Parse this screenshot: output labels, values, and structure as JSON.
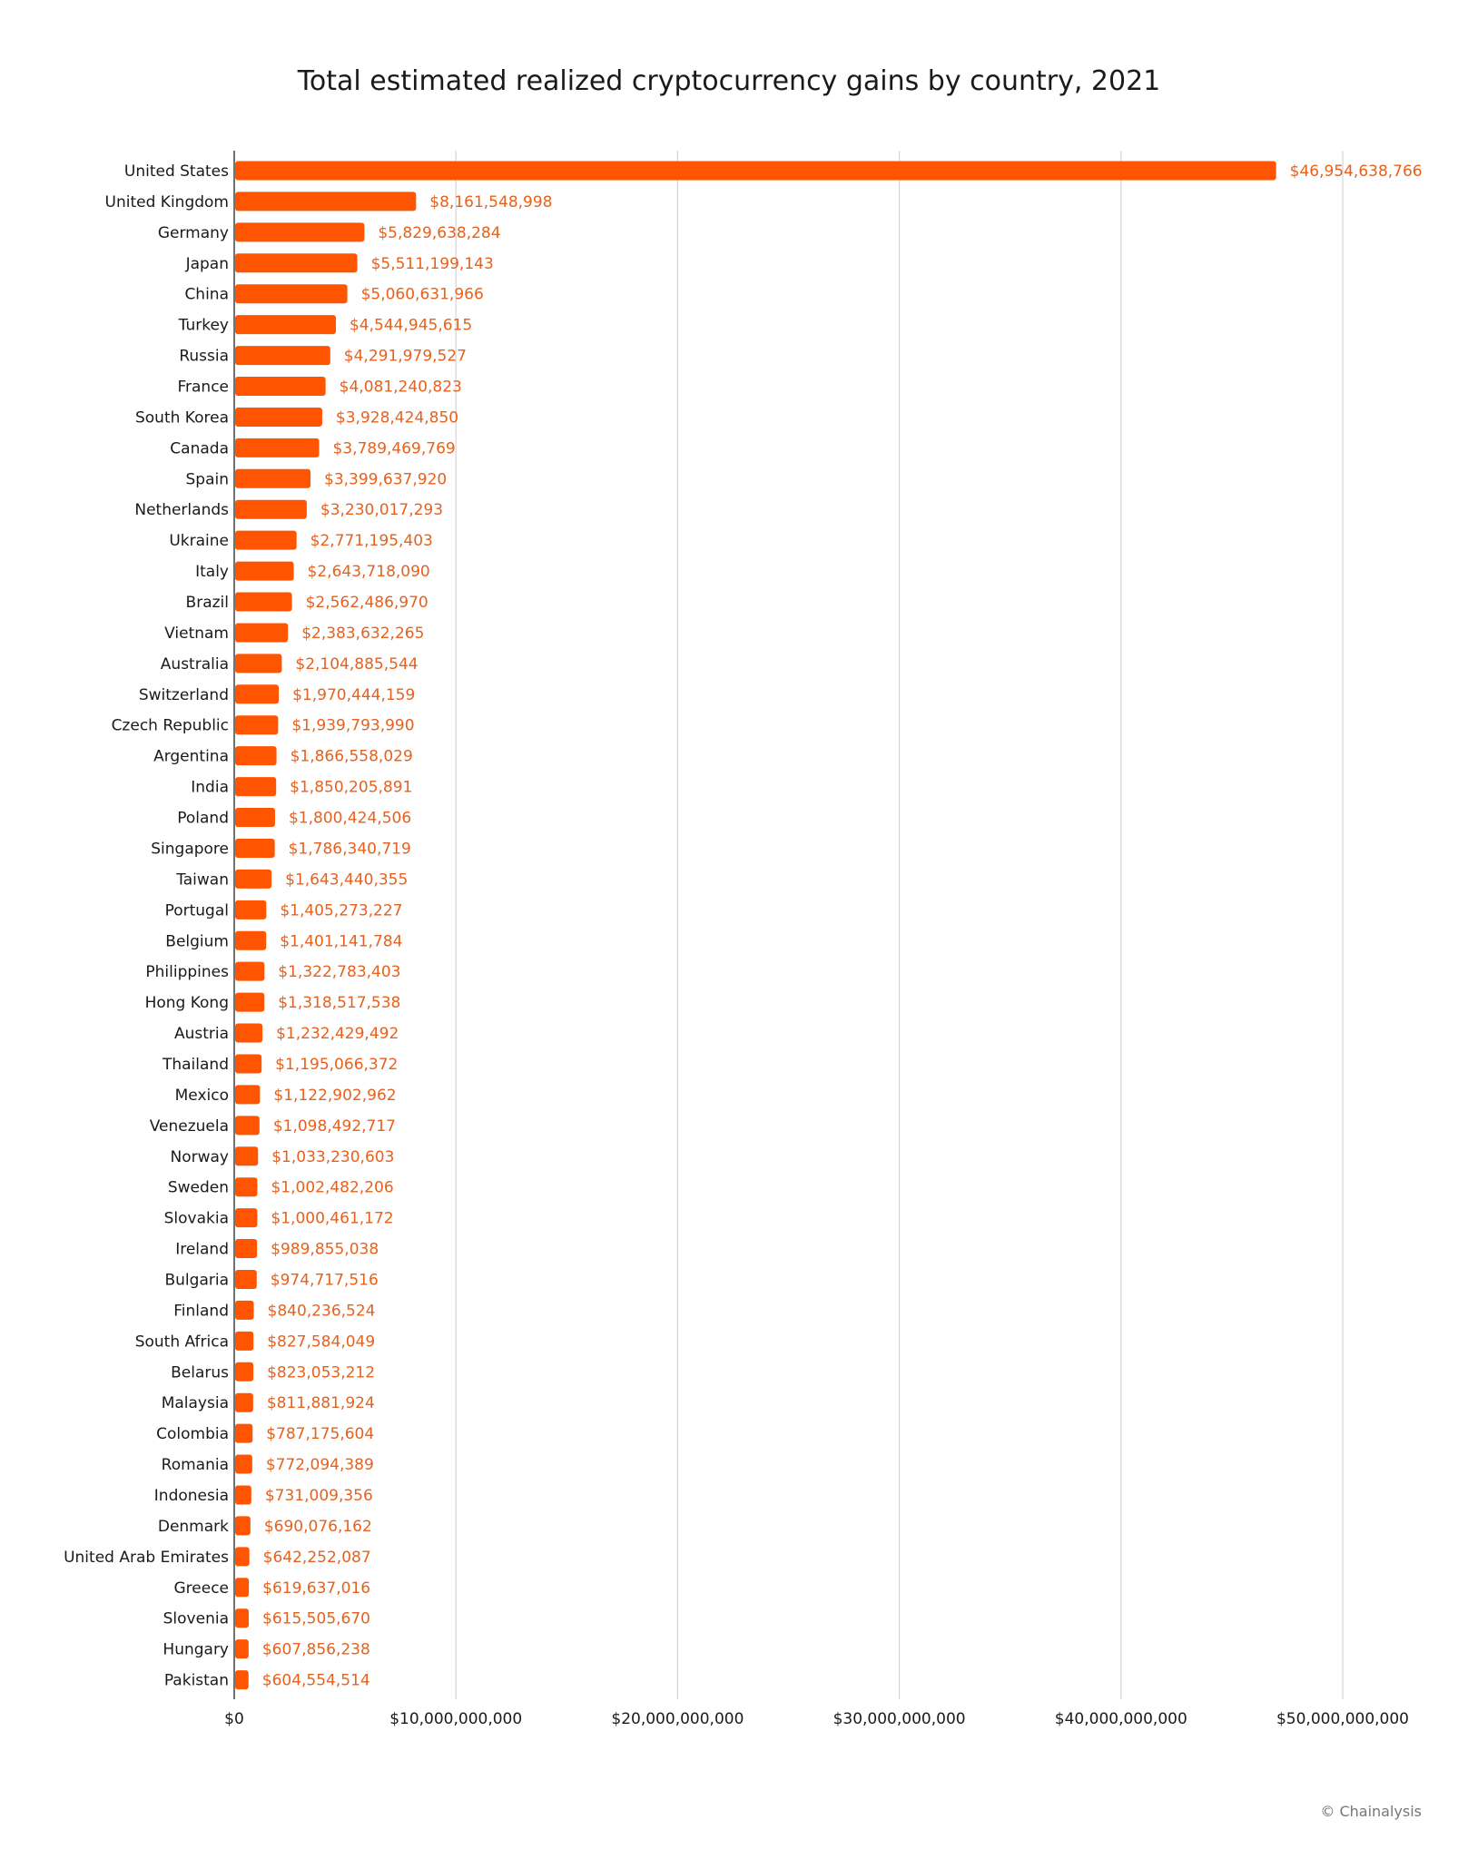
{
  "chart_data": {
    "type": "bar",
    "orientation": "horizontal",
    "title": "Total estimated realized cryptocurrency gains by country, 2021",
    "xlabel": "",
    "ylabel": "",
    "xlim": [
      0,
      50000000000
    ],
    "x_ticks": [
      0,
      10000000000,
      20000000000,
      30000000000,
      40000000000,
      50000000000
    ],
    "x_tick_labels": [
      "$0",
      "$10,000,000,000",
      "$20,000,000,000",
      "$30,000,000,000",
      "$40,000,000,000",
      "$50,000,000,000"
    ],
    "grid": "vertical",
    "legend": "none",
    "bar_color": "#FF5500",
    "label_color": "#E8611C",
    "categories": [
      "United States",
      "United Kingdom",
      "Germany",
      "Japan",
      "China",
      "Turkey",
      "Russia",
      "France",
      "South Korea",
      "Canada",
      "Spain",
      "Netherlands",
      "Ukraine",
      "Italy",
      "Brazil",
      "Vietnam",
      "Australia",
      "Switzerland",
      "Czech Republic",
      "Argentina",
      "India",
      "Poland",
      "Singapore",
      "Taiwan",
      "Portugal",
      "Belgium",
      "Philippines",
      "Hong Kong",
      "Austria",
      "Thailand",
      "Mexico",
      "Venezuela",
      "Norway",
      "Sweden",
      "Slovakia",
      "Ireland",
      "Bulgaria",
      "Finland",
      "South Africa",
      "Belarus",
      "Malaysia",
      "Colombia",
      "Romania",
      "Indonesia",
      "Denmark",
      "United Arab Emirates",
      "Greece",
      "Slovenia",
      "Hungary",
      "Pakistan"
    ],
    "values": [
      46954638766,
      8161548998,
      5829638284,
      5511199143,
      5060631966,
      4544945615,
      4291979527,
      4081240823,
      3928424850,
      3789469769,
      3399637920,
      3230017293,
      2771195403,
      2643718090,
      2562486970,
      2383632265,
      2104885544,
      1970444159,
      1939793990,
      1866558029,
      1850205891,
      1800424506,
      1786340719,
      1643440355,
      1405273227,
      1401141784,
      1322783403,
      1318517538,
      1232429492,
      1195066372,
      1122902962,
      1098492717,
      1033230603,
      1002482206,
      1000461172,
      989855038,
      974717516,
      840236524,
      827584049,
      823053212,
      811881924,
      787175604,
      772094389,
      731009356,
      690076162,
      642252087,
      619637016,
      615505670,
      607856238,
      604554514
    ],
    "value_labels": [
      "$46,954,638,766",
      "$8,161,548,998",
      "$5,829,638,284",
      "$5,511,199,143",
      "$5,060,631,966",
      "$4,544,945,615",
      "$4,291,979,527",
      "$4,081,240,823",
      "$3,928,424,850",
      "$3,789,469,769",
      "$3,399,637,920",
      "$3,230,017,293",
      "$2,771,195,403",
      "$2,643,718,090",
      "$2,562,486,970",
      "$2,383,632,265",
      "$2,104,885,544",
      "$1,970,444,159",
      "$1,939,793,990",
      "$1,866,558,029",
      "$1,850,205,891",
      "$1,800,424,506",
      "$1,786,340,719",
      "$1,643,440,355",
      "$1,405,273,227",
      "$1,401,141,784",
      "$1,322,783,403",
      "$1,318,517,538",
      "$1,232,429,492",
      "$1,195,066,372",
      "$1,122,902,962",
      "$1,098,492,717",
      "$1,033,230,603",
      "$1,002,482,206",
      "$1,000,461,172",
      "$989,855,038",
      "$974,717,516",
      "$840,236,524",
      "$827,584,049",
      "$823,053,212",
      "$811,881,924",
      "$787,175,604",
      "$772,094,389",
      "$731,009,356",
      "$690,076,162",
      "$642,252,087",
      "$619,637,016",
      "$615,505,670",
      "$607,856,238",
      "$604,554,514"
    ]
  },
  "credit": "© Chainalysis"
}
